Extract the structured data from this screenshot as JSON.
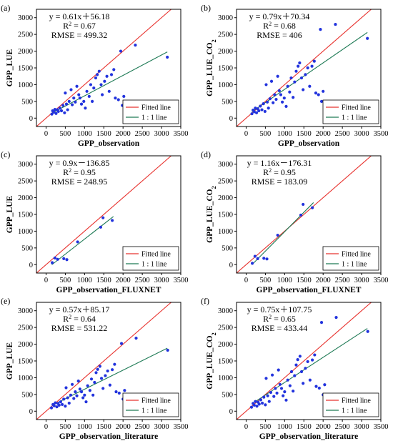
{
  "colors": {
    "fitted_line": "#e8332f",
    "one_to_one_line": "#1e7a55",
    "points": "#2233dd",
    "axis": "#000000"
  },
  "chart_data": [
    {
      "type": "scatter",
      "letter": "(a)",
      "xlabel": "GPP_observation",
      "ylabel": "GPP_LUE",
      "xlim": [
        -250,
        3500
      ],
      "ylim": [
        -250,
        3250
      ],
      "xticks": [
        "0",
        "500",
        "1000",
        "1500",
        "2000",
        "2500",
        "3000",
        "3500"
      ],
      "yticks": [
        "0",
        "500",
        "1000",
        "1500",
        "2000",
        "2500",
        "3000"
      ],
      "equation": "y = 0.61x＋56.18",
      "r2": "R",
      "r2_exp": "2",
      "r2_val": " = 0.67",
      "rmse": "RMSE = 499.32",
      "fit": {
        "slope": 0.61,
        "intercept": 56.18,
        "x_range": [
          150,
          3150
        ]
      },
      "legend": [
        "Fitted line",
        "1 : 1 line"
      ],
      "points": [
        [
          150,
          120
        ],
        [
          170,
          220
        ],
        [
          200,
          180
        ],
        [
          230,
          260
        ],
        [
          260,
          140
        ],
        [
          290,
          250
        ],
        [
          320,
          200
        ],
        [
          360,
          300
        ],
        [
          400,
          220
        ],
        [
          440,
          380
        ],
        [
          480,
          160
        ],
        [
          500,
          750
        ],
        [
          530,
          420
        ],
        [
          560,
          250
        ],
        [
          600,
          500
        ],
        [
          650,
          850
        ],
        [
          680,
          400
        ],
        [
          720,
          600
        ],
        [
          760,
          480
        ],
        [
          800,
          950
        ],
        [
          850,
          700
        ],
        [
          880,
          600
        ],
        [
          920,
          420
        ],
        [
          980,
          500
        ],
        [
          1020,
          300
        ],
        [
          1060,
          800
        ],
        [
          1120,
          650
        ],
        [
          1160,
          1000
        ],
        [
          1200,
          500
        ],
        [
          1240,
          900
        ],
        [
          1290,
          1200
        ],
        [
          1330,
          1300
        ],
        [
          1380,
          1400
        ],
        [
          1430,
          1000
        ],
        [
          1460,
          700
        ],
        [
          1520,
          1100
        ],
        [
          1580,
          1250
        ],
        [
          1640,
          800
        ],
        [
          1700,
          1300
        ],
        [
          1760,
          1450
        ],
        [
          1800,
          600
        ],
        [
          1880,
          550
        ],
        [
          1940,
          2000
        ],
        [
          1980,
          380
        ],
        [
          2020,
          650
        ],
        [
          2320,
          2180
        ],
        [
          3150,
          1820
        ]
      ]
    },
    {
      "type": "scatter",
      "letter": "(b)",
      "xlabel": "GPP_observation",
      "ylabel": "GPP_LUE_CO",
      "ylabel_sub": "2",
      "xlim": [
        -250,
        3500
      ],
      "ylim": [
        -250,
        3250
      ],
      "xticks": [
        "0",
        "500",
        "1000",
        "1500",
        "2000",
        "2500",
        "3000",
        "3500"
      ],
      "yticks": [
        "0",
        "500",
        "1000",
        "1500",
        "2000",
        "2500",
        "3000"
      ],
      "equation": "y = 0.79x＋70.34",
      "r2": "R",
      "r2_exp": "2",
      "r2_val": " = 0.68",
      "rmse": "RMSE = 406",
      "fit": {
        "slope": 0.79,
        "intercept": 70.34,
        "x_range": [
          150,
          3150
        ]
      },
      "legend": [
        "Fitted line",
        "1 : 1 line"
      ],
      "points": [
        [
          150,
          130
        ],
        [
          180,
          240
        ],
        [
          210,
          190
        ],
        [
          240,
          300
        ],
        [
          270,
          160
        ],
        [
          300,
          280
        ],
        [
          330,
          220
        ],
        [
          370,
          360
        ],
        [
          410,
          250
        ],
        [
          450,
          430
        ],
        [
          490,
          200
        ],
        [
          520,
          1000
        ],
        [
          550,
          480
        ],
        [
          580,
          300
        ],
        [
          620,
          580
        ],
        [
          660,
          1100
        ],
        [
          700,
          460
        ],
        [
          740,
          700
        ],
        [
          780,
          560
        ],
        [
          820,
          1250
        ],
        [
          860,
          820
        ],
        [
          900,
          700
        ],
        [
          940,
          480
        ],
        [
          990,
          600
        ],
        [
          1040,
          350
        ],
        [
          1080,
          950
        ],
        [
          1130,
          780
        ],
        [
          1170,
          1200
        ],
        [
          1220,
          620
        ],
        [
          1260,
          1080
        ],
        [
          1300,
          1400
        ],
        [
          1350,
          1550
        ],
        [
          1390,
          1650
        ],
        [
          1440,
          1200
        ],
        [
          1480,
          850
        ],
        [
          1540,
          1300
        ],
        [
          1600,
          1500
        ],
        [
          1650,
          950
        ],
        [
          1710,
          1550
        ],
        [
          1770,
          1700
        ],
        [
          1810,
          750
        ],
        [
          1880,
          700
        ],
        [
          1930,
          2650
        ],
        [
          1960,
          500
        ],
        [
          2000,
          800
        ],
        [
          2320,
          2800
        ],
        [
          3150,
          2380
        ]
      ]
    },
    {
      "type": "scatter",
      "letter": "(c)",
      "xlabel": "GPP_observation_FLUXNET",
      "ylabel": "GPP_LUE",
      "xlim": [
        -250,
        3500
      ],
      "ylim": [
        -250,
        3250
      ],
      "xticks": [
        "0",
        "500",
        "1000",
        "1500",
        "2000",
        "2500",
        "3000",
        "3500"
      ],
      "yticks": [
        "0",
        "500",
        "1000",
        "1500",
        "2000",
        "2500",
        "3000"
      ],
      "equation": "y = 0.9x－136.85",
      "r2": "R",
      "r2_exp": "2",
      "r2_val": " = 0.95",
      "rmse": "RMSE = 248.95",
      "fit": {
        "slope": 0.9,
        "intercept": -136.85,
        "x_range": [
          150,
          1750
        ]
      },
      "legend": [
        "Fitted line",
        "1 : 1 line"
      ],
      "points": [
        [
          160,
          60
        ],
        [
          230,
          200
        ],
        [
          300,
          160
        ],
        [
          460,
          180
        ],
        [
          540,
          150
        ],
        [
          820,
          680
        ],
        [
          1420,
          1120
        ],
        [
          1480,
          1400
        ],
        [
          1720,
          1320
        ]
      ]
    },
    {
      "type": "scatter",
      "letter": "(d)",
      "xlabel": "GPP_observation_FLUXNET",
      "ylabel": "GPP_LUE_CO",
      "ylabel_sub": "2",
      "xlim": [
        -250,
        3500
      ],
      "ylim": [
        -250,
        3250
      ],
      "xticks": [
        "0",
        "500",
        "1000",
        "1500",
        "2000",
        "2500",
        "3000",
        "3500"
      ],
      "yticks": [
        "0",
        "500",
        "1000",
        "1500",
        "2000",
        "2500",
        "3000"
      ],
      "equation": "y = 1.16x－176.31",
      "r2": "R",
      "r2_exp": "2",
      "r2_val": " = 0.95",
      "rmse": "RMSE = 183.09",
      "fit": {
        "slope": 1.16,
        "intercept": -176.31,
        "x_range": [
          150,
          1750
        ]
      },
      "legend": [
        "Fitted line",
        "1 : 1 line"
      ],
      "points": [
        [
          160,
          40
        ],
        [
          230,
          250
        ],
        [
          300,
          180
        ],
        [
          460,
          190
        ],
        [
          540,
          170
        ],
        [
          820,
          880
        ],
        [
          1420,
          1480
        ],
        [
          1480,
          1800
        ],
        [
          1720,
          1700
        ]
      ]
    },
    {
      "type": "scatter",
      "letter": "(e)",
      "xlabel": "GPP_observation_literature",
      "ylabel": "GPP_LUE",
      "xlim": [
        -250,
        3500
      ],
      "ylim": [
        -250,
        3250
      ],
      "xticks": [
        "0",
        "500",
        "1000",
        "1500",
        "2000",
        "2500",
        "3000",
        "3500"
      ],
      "yticks": [
        "0",
        "500",
        "1000",
        "1500",
        "2000",
        "2500",
        "3000"
      ],
      "equation": "y = 0.57x＋85.17",
      "r2": "R",
      "r2_exp": "2",
      "r2_val": " = 0.64",
      "rmse": "RMSE = 531.22",
      "fit": {
        "slope": 0.57,
        "intercept": 85.17,
        "x_range": [
          150,
          3150
        ]
      },
      "legend": [
        "Fitted line",
        "1 : 1 line"
      ],
      "points": [
        [
          140,
          100
        ],
        [
          180,
          200
        ],
        [
          210,
          160
        ],
        [
          240,
          250
        ],
        [
          280,
          130
        ],
        [
          310,
          230
        ],
        [
          340,
          180
        ],
        [
          380,
          280
        ],
        [
          420,
          200
        ],
        [
          460,
          360
        ],
        [
          500,
          150
        ],
        [
          520,
          700
        ],
        [
          560,
          400
        ],
        [
          600,
          240
        ],
        [
          640,
          480
        ],
        [
          680,
          800
        ],
        [
          720,
          380
        ],
        [
          760,
          580
        ],
        [
          800,
          460
        ],
        [
          840,
          900
        ],
        [
          880,
          660
        ],
        [
          920,
          580
        ],
        [
          960,
          400
        ],
        [
          1000,
          480
        ],
        [
          1040,
          280
        ],
        [
          1080,
          760
        ],
        [
          1140,
          620
        ],
        [
          1180,
          960
        ],
        [
          1220,
          480
        ],
        [
          1260,
          860
        ],
        [
          1300,
          1150
        ],
        [
          1340,
          1250
        ],
        [
          1400,
          1340
        ],
        [
          1440,
          980
        ],
        [
          1480,
          680
        ],
        [
          1540,
          1060
        ],
        [
          1600,
          1200
        ],
        [
          1660,
          780
        ],
        [
          1720,
          1240
        ],
        [
          1780,
          1400
        ],
        [
          1820,
          580
        ],
        [
          1900,
          540
        ],
        [
          1960,
          2020
        ],
        [
          2000,
          360
        ],
        [
          2040,
          620
        ],
        [
          2340,
          2180
        ],
        [
          3160,
          1820
        ]
      ]
    },
    {
      "type": "scatter",
      "letter": "(f)",
      "xlabel": "GPP_observation_literature",
      "ylabel": "GPP_LUE_CO",
      "ylabel_sub": "2",
      "xlim": [
        -250,
        3500
      ],
      "ylim": [
        -250,
        3250
      ],
      "xticks": [
        "0",
        "500",
        "1000",
        "1500",
        "2000",
        "2500",
        "3000",
        "3500"
      ],
      "yticks": [
        "0",
        "500",
        "1000",
        "1500",
        "2000",
        "2500",
        "3000"
      ],
      "equation": "y = 0.75x＋107.75",
      "r2": "R",
      "r2_exp": "2",
      "r2_val": " = 0.65",
      "rmse": "RMSE = 433.44",
      "fit": {
        "slope": 0.75,
        "intercept": 107.75,
        "x_range": [
          150,
          3150
        ]
      },
      "legend": [
        "Fitted line",
        "1 : 1 line"
      ],
      "points": [
        [
          140,
          120
        ],
        [
          180,
          230
        ],
        [
          210,
          180
        ],
        [
          240,
          290
        ],
        [
          280,
          150
        ],
        [
          310,
          270
        ],
        [
          340,
          210
        ],
        [
          380,
          340
        ],
        [
          420,
          240
        ],
        [
          460,
          420
        ],
        [
          500,
          190
        ],
        [
          520,
          980
        ],
        [
          560,
          460
        ],
        [
          600,
          290
        ],
        [
          640,
          560
        ],
        [
          680,
          1080
        ],
        [
          720,
          440
        ],
        [
          760,
          680
        ],
        [
          800,
          540
        ],
        [
          840,
          1230
        ],
        [
          880,
          800
        ],
        [
          920,
          680
        ],
        [
          960,
          460
        ],
        [
          1000,
          580
        ],
        [
          1040,
          330
        ],
        [
          1080,
          930
        ],
        [
          1140,
          760
        ],
        [
          1180,
          1180
        ],
        [
          1220,
          600
        ],
        [
          1260,
          1060
        ],
        [
          1300,
          1380
        ],
        [
          1340,
          1540
        ],
        [
          1400,
          1640
        ],
        [
          1440,
          1180
        ],
        [
          1480,
          830
        ],
        [
          1540,
          1280
        ],
        [
          1600,
          1480
        ],
        [
          1660,
          930
        ],
        [
          1720,
          1530
        ],
        [
          1780,
          1680
        ],
        [
          1820,
          740
        ],
        [
          1900,
          690
        ],
        [
          1960,
          2650
        ],
        [
          2000,
          490
        ],
        [
          2040,
          790
        ],
        [
          2340,
          2800
        ],
        [
          3160,
          2380
        ]
      ]
    }
  ]
}
